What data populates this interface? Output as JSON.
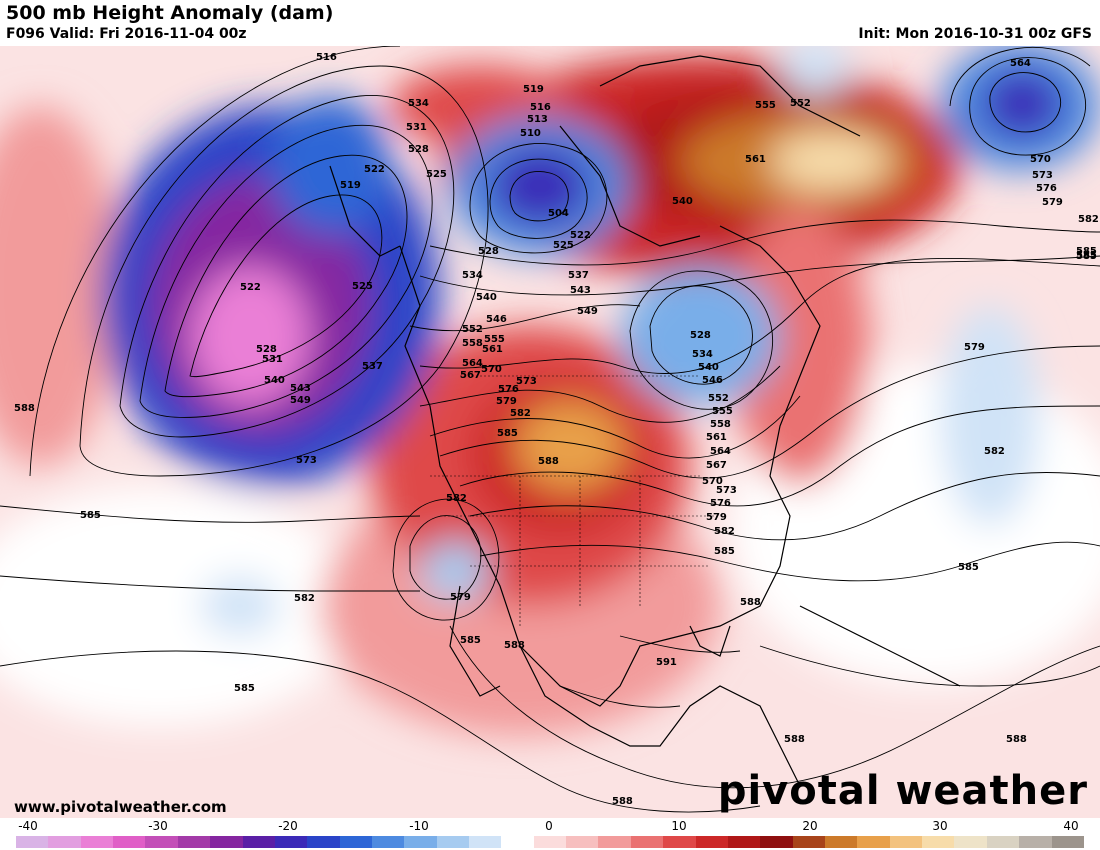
{
  "header": {
    "title": "500 mb Height Anomaly (dam)",
    "valid": "F096 Valid: Fri 2016-11-04 00z",
    "init": "Init: Mon 2016-10-31 00z GFS"
  },
  "footer": {
    "website": "www.pivotalweather.com",
    "brand": "pivotal weather"
  },
  "colorbar": {
    "tick_labels": [
      "-40",
      "-30",
      "-20",
      "-10",
      "0",
      "10",
      "20",
      "30",
      "40"
    ],
    "colors": [
      "#d9b3e6",
      "#e29ee0",
      "#ea7fd6",
      "#e05fc7",
      "#c34fb8",
      "#a33aa8",
      "#8526a0",
      "#5a1fa6",
      "#3b2ab8",
      "#2a44c8",
      "#2d66d6",
      "#4d8ae0",
      "#79aee9",
      "#a6cbf0",
      "#d0e3f7",
      "#ffffff",
      "#fbdcdc",
      "#f7bfbf",
      "#f29b9b",
      "#ea7272",
      "#df4848",
      "#cc2828",
      "#b01818",
      "#8f1010",
      "#a8441a",
      "#cc7a2a",
      "#e8a04a",
      "#f3c27e",
      "#f7dcaa",
      "#eee3c8",
      "#d9d2c2",
      "#b8b0a8",
      "#9c948c"
    ]
  },
  "map": {
    "contour_labels": [
      "516",
      "534",
      "519",
      "516",
      "513",
      "510",
      "531",
      "528",
      "522",
      "525",
      "519",
      "504",
      "522",
      "525",
      "528",
      "564",
      "555",
      "552",
      "561",
      "540",
      "570",
      "573",
      "576",
      "579",
      "582",
      "585",
      "534",
      "537",
      "543",
      "540",
      "546",
      "549",
      "552",
      "555",
      "558",
      "561",
      "564",
      "567",
      "570",
      "576",
      "579",
      "573",
      "582",
      "585",
      "528",
      "534",
      "540",
      "546",
      "552",
      "555",
      "558",
      "561",
      "564",
      "567",
      "570",
      "573",
      "576",
      "579",
      "582",
      "585",
      "522",
      "525",
      "528",
      "531",
      "537",
      "540",
      "543",
      "549",
      "588",
      "573",
      "585",
      "588",
      "582",
      "579",
      "582",
      "585",
      "588",
      "591",
      "588",
      "585",
      "588",
      "588",
      "588",
      "585",
      "585",
      "579",
      "582",
      "585"
    ]
  }
}
